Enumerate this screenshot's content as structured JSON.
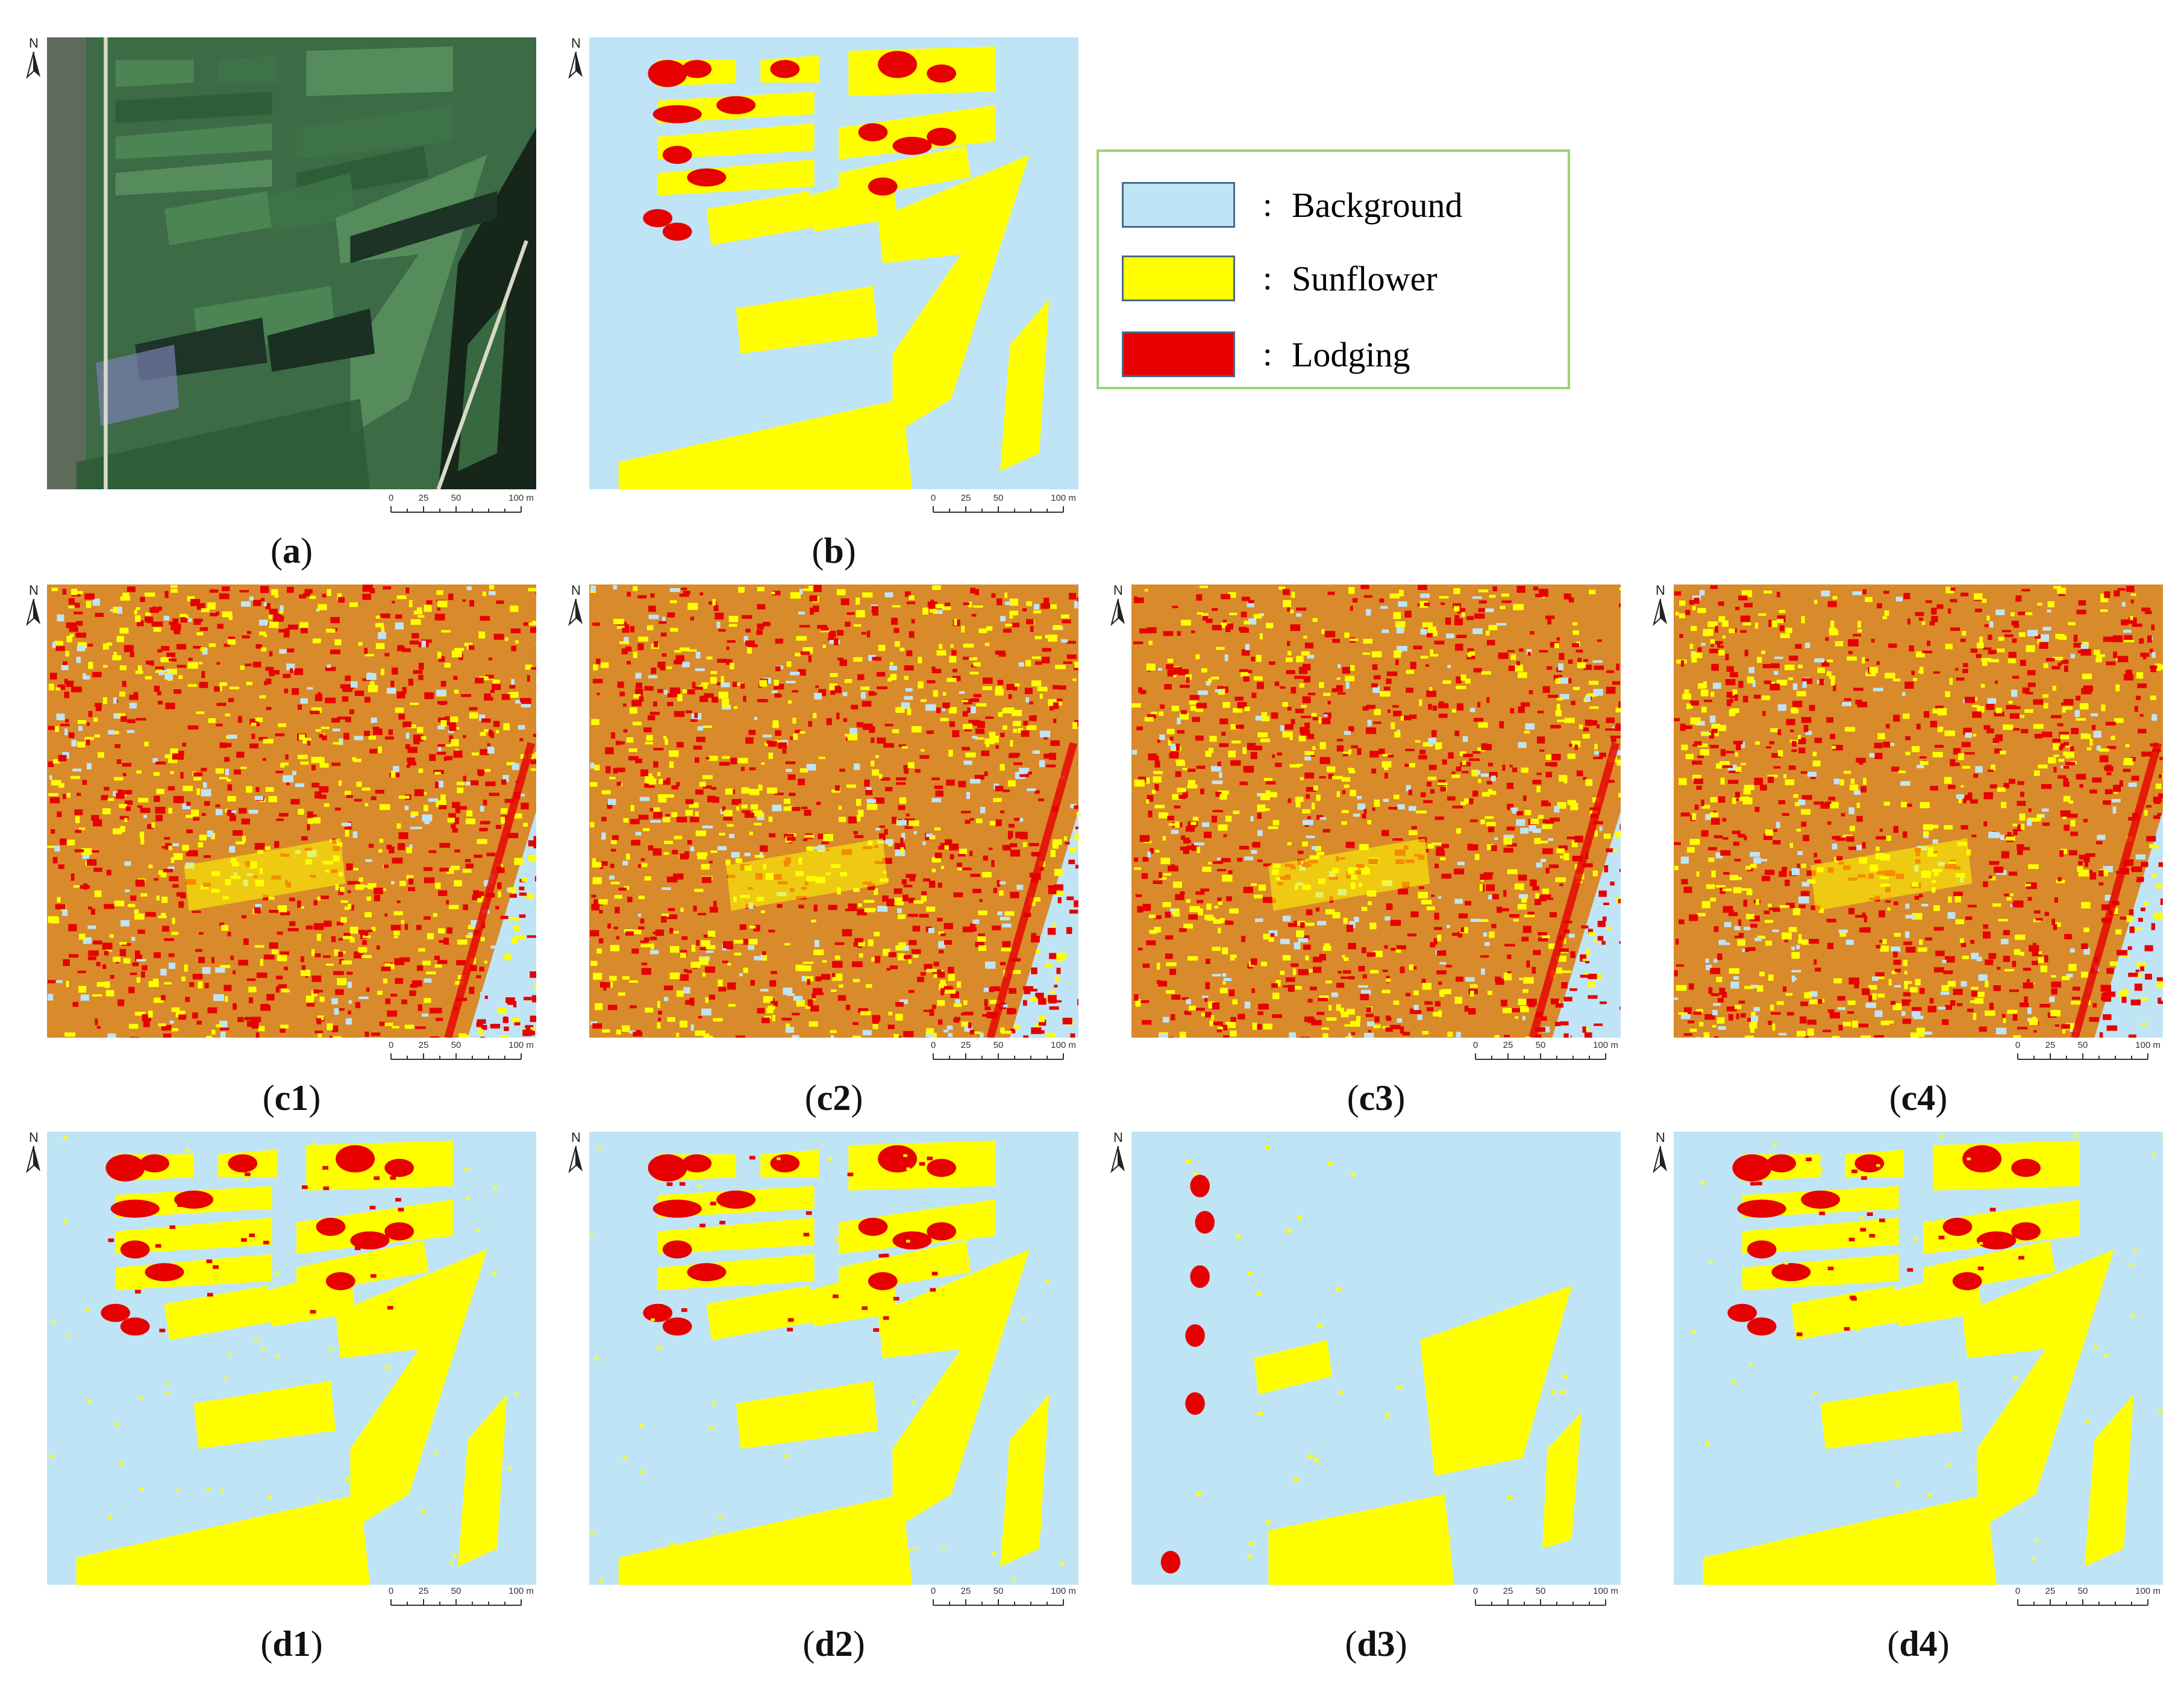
{
  "colors": {
    "background": "#bfe4f5",
    "sunflower": "#ffff00",
    "lodging": "#e60000",
    "legend_border": "#9bd37a"
  },
  "legend": {
    "items": [
      {
        "label": "Background",
        "color": "#bfe4f5",
        "separator": ":"
      },
      {
        "label": "Sunflower",
        "color": "#ffff00",
        "separator": ":"
      },
      {
        "label": "Lodging",
        "color": "#e60000",
        "separator": ":"
      }
    ]
  },
  "north_label": "N",
  "scale_bar": {
    "ticks": [
      "0",
      "25",
      "50",
      "100 m"
    ]
  },
  "panels": [
    {
      "id": "a",
      "caption_prefix": "(",
      "caption_bold": "a",
      "caption_suffix": ")",
      "kind": "rgb"
    },
    {
      "id": "b",
      "caption_prefix": "(",
      "caption_bold": "b",
      "caption_suffix": ")",
      "kind": "truth"
    },
    {
      "id": "c1",
      "caption_prefix": "(",
      "caption_bold": "c1",
      "caption_suffix": ")",
      "kind": "noisy"
    },
    {
      "id": "c2",
      "caption_prefix": "(",
      "caption_bold": "c2",
      "caption_suffix": ")",
      "kind": "noisy"
    },
    {
      "id": "c3",
      "caption_prefix": "(",
      "caption_bold": "c3",
      "caption_suffix": ")",
      "kind": "noisy"
    },
    {
      "id": "c4",
      "caption_prefix": "(",
      "caption_bold": "c4",
      "caption_suffix": ")",
      "kind": "noisy"
    },
    {
      "id": "d1",
      "caption_prefix": "(",
      "caption_bold": "d1",
      "caption_suffix": ")",
      "kind": "clean"
    },
    {
      "id": "d2",
      "caption_prefix": "(",
      "caption_bold": "d2",
      "caption_suffix": ")",
      "kind": "clean"
    },
    {
      "id": "d3",
      "caption_prefix": "(",
      "caption_bold": "d3",
      "caption_suffix": ")",
      "kind": "sparse"
    },
    {
      "id": "d4",
      "caption_prefix": "(",
      "caption_bold": "d4",
      "caption_suffix": ")",
      "kind": "clean"
    }
  ]
}
